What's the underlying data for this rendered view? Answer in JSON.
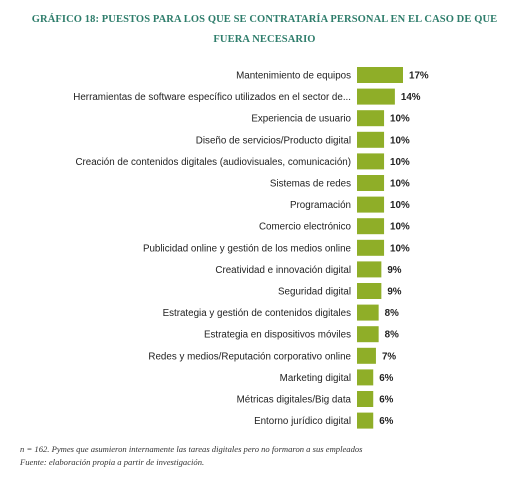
{
  "chart_data": {
    "type": "bar",
    "orientation": "horizontal",
    "title": "GRÁFICO 18: PUESTOS PARA LOS QUE SE CONTRATARÍA PERSONAL EN EL CASO DE QUE FUERA NECESARIO",
    "categories": [
      "Mantenimiento de equipos",
      "Herramientas de software específico utilizados en el sector de...",
      "Experiencia de usuario",
      "Diseño de servicios/Producto digital",
      "Creación de contenidos digitales (audiovisuales, comunicación)",
      "Sistemas de redes",
      "Programación",
      "Comercio electrónico",
      "Publicidad online y gestión de los medios online",
      "Creatividad e innovación  digital",
      "Seguridad digital",
      "Estrategia y gestión de contenidos digitales",
      "Estrategia en dispositivos móviles",
      "Redes y medios/Reputación corporativo online",
      "Marketing digital",
      "Métricas digitales/Big data",
      "Entorno jurídico digital"
    ],
    "values": [
      17,
      14,
      10,
      10,
      10,
      10,
      10,
      10,
      10,
      9,
      9,
      8,
      8,
      7,
      6,
      6,
      6
    ],
    "value_labels": [
      "17%",
      "14%",
      "10%",
      "10%",
      "10%",
      "10%",
      "10%",
      "10%",
      "10%",
      "9%",
      "9%",
      "8%",
      "8%",
      "7%",
      "6%",
      "6%",
      "6%"
    ],
    "bar_color": "#8fae28",
    "xlim": [
      0,
      17
    ],
    "grid": false,
    "legend": "none"
  },
  "notes": {
    "sample": "n = 162. Pymes que asumieron internamente las tareas digitales pero no formaron a sus empleados",
    "source": "Fuente: elaboración propia a partir de investigación."
  }
}
